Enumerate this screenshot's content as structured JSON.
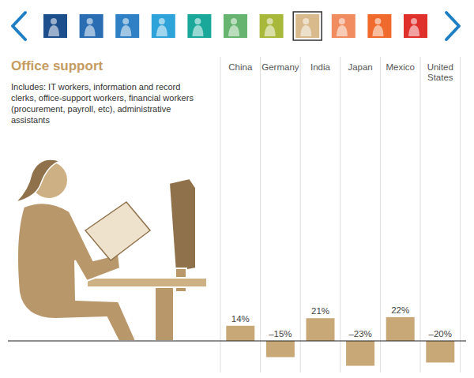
{
  "chart_data": {
    "type": "bar",
    "title": "Office support",
    "subtitle": "Includes: IT workers, information and record clerks, office-support workers, financial workers (procurement, payroll, etc), administrative assistants",
    "categories": [
      "China",
      "Germany",
      "India",
      "Japan",
      "Mexico",
      "United States"
    ],
    "values": [
      14,
      -15,
      21,
      -23,
      22,
      -20
    ],
    "value_labels": [
      "14%",
      "–15%",
      "21%",
      "–23%",
      "22%",
      "–20%"
    ],
    "color": "#c9a877",
    "data_labels": true,
    "tick_labels": false
  }
}
